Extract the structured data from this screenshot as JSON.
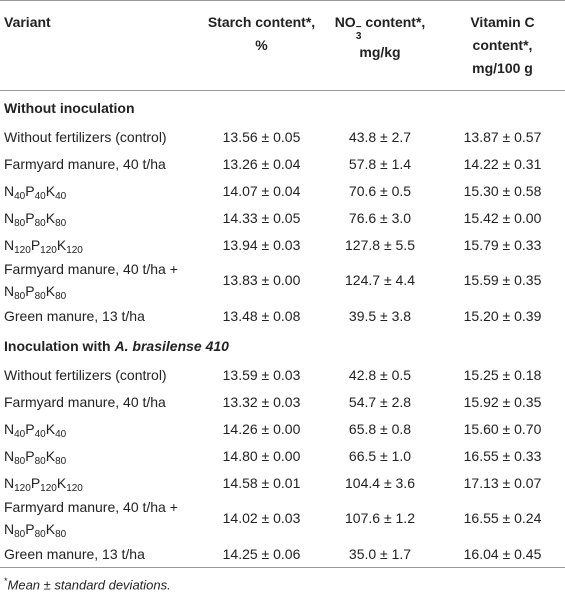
{
  "table": {
    "header": {
      "variant": "Variant",
      "starch": [
        "Starch content*,",
        "%"
      ],
      "nitrate": [
        "NO",
        "3",
        "−",
        "content*,",
        "mg/kg"
      ],
      "vitamin_c": [
        "Vitamin C",
        "content*,",
        "mg/100 g"
      ]
    },
    "sections": [
      {
        "title": {
          "text": "Without inoculation"
        },
        "rows": [
          {
            "variant": [
              "Without fertilizers (control)"
            ],
            "values": [
              "13.56 ± 0.05",
              "43.8 ± 2.7",
              "13.87 ± 0.57"
            ]
          },
          {
            "variant": [
              "Farmyard manure, 40 t/ha"
            ],
            "values": [
              "13.26 ± 0.04",
              "57.8 ± 1.4",
              "14.22 ± 0.31"
            ]
          },
          {
            "variant": [
              "N",
              {
                "sub": "40"
              },
              "P",
              {
                "sub": "40"
              },
              "K",
              {
                "sub": "40"
              }
            ],
            "values": [
              "14.07 ± 0.04",
              "70.6 ± 0.5",
              "15.30 ± 0.58"
            ]
          },
          {
            "variant": [
              "N",
              {
                "sub": "80"
              },
              "P",
              {
                "sub": "80"
              },
              "K",
              {
                "sub": "80"
              }
            ],
            "values": [
              "14.33 ± 0.05",
              "76.6 ± 3.0",
              "15.42 ± 0.00"
            ]
          },
          {
            "variant": [
              "N",
              {
                "sub": "120"
              },
              "P",
              {
                "sub": "120"
              },
              "K",
              {
                "sub": "120"
              }
            ],
            "values": [
              "13.94 ± 0.03",
              "127.8 ± 5.5",
              "15.79 ± 0.33"
            ]
          },
          {
            "variant": [
              "Farmyard manure, 40 t/ha + N",
              {
                "sub": "80"
              },
              "P",
              {
                "sub": "80"
              },
              "K",
              {
                "sub": "80"
              }
            ],
            "values": [
              "13.83 ± 0.00",
              "124.7 ± 4.4",
              "15.59 ± 0.35"
            ]
          },
          {
            "variant": [
              "Green manure, 13 t/ha"
            ],
            "values": [
              "13.48 ± 0.08",
              "39.5 ± 3.8",
              "15.20 ± 0.39"
            ]
          }
        ]
      },
      {
        "title": {
          "text": "Inoculation with",
          "italic": "A. brasilense 410"
        },
        "rows": [
          {
            "variant": [
              "Without fertilizers (control)"
            ],
            "values": [
              "13.59 ± 0.03",
              "42.8 ± 0.5",
              "15.25 ± 0.18"
            ]
          },
          {
            "variant": [
              "Farmyard manure, 40 t/ha"
            ],
            "values": [
              "13.32 ± 0.03",
              "54.7 ± 2.8",
              "15.92 ± 0.35"
            ]
          },
          {
            "variant": [
              "N",
              {
                "sub": "40"
              },
              "P",
              {
                "sub": "40"
              },
              "K",
              {
                "sub": "40"
              }
            ],
            "values": [
              "14.26 ± 0.00",
              "65.8 ± 0.8",
              "15.60 ± 0.70"
            ]
          },
          {
            "variant": [
              "N",
              {
                "sub": "80"
              },
              "P",
              {
                "sub": "80"
              },
              "K",
              {
                "sub": "80"
              }
            ],
            "values": [
              "14.80 ± 0.00",
              "66.5 ± 1.0",
              "16.55 ± 0.33"
            ]
          },
          {
            "variant": [
              "N",
              {
                "sub": "120"
              },
              "P",
              {
                "sub": "120"
              },
              "K",
              {
                "sub": "120"
              }
            ],
            "values": [
              "14.58 ± 0.01",
              "104.4 ± 3.6",
              "17.13 ± 0.07"
            ]
          },
          {
            "variant": [
              "Farmyard manure, 40 t/ha + N",
              {
                "sub": "80"
              },
              "P",
              {
                "sub": "80"
              },
              "K",
              {
                "sub": "80"
              }
            ],
            "values": [
              "14.02 ± 0.03",
              "107.6 ± 1.2",
              "16.55 ± 0.24"
            ]
          },
          {
            "variant": [
              "Green manure, 13 t/ha"
            ],
            "values": [
              "14.25 ± 0.06",
              "35.0 ± 1.7",
              "16.04 ± 0.45"
            ]
          }
        ]
      }
    ]
  },
  "footnote": {
    "mark": "*",
    "text": "Mean ± standard deviations."
  }
}
